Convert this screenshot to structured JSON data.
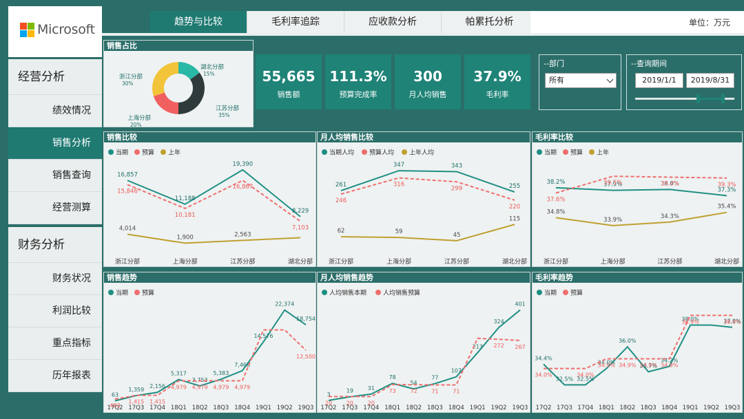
{
  "brand": {
    "name": "Microsoft"
  },
  "header": {
    "unit": "单位：万元"
  },
  "tabs": [
    {
      "label": "趋势与比较",
      "active": true
    },
    {
      "label": "毛利率追踪",
      "active": false
    },
    {
      "label": "应收款分析",
      "active": false
    },
    {
      "label": "帕累托分析",
      "active": false
    }
  ],
  "sidebar": {
    "groups": [
      {
        "title": "经营分析",
        "items": [
          {
            "label": "绩效情况",
            "active": false
          },
          {
            "label": "销售分析",
            "active": true
          },
          {
            "label": "销售查询",
            "active": false
          },
          {
            "label": "经营测算",
            "active": false
          }
        ]
      },
      {
        "title": "财务分析",
        "items": [
          {
            "label": "财务状况",
            "active": false
          },
          {
            "label": "利润比较",
            "active": false
          },
          {
            "label": "重点指标",
            "active": false
          },
          {
            "label": "历年报表",
            "active": false
          }
        ]
      }
    ]
  },
  "kpis": [
    {
      "value": "55,665",
      "label": "销售额"
    },
    {
      "value": "111.3%",
      "label": "预算完成率"
    },
    {
      "value": "300",
      "label": "月人均销售"
    },
    {
      "value": "37.9%",
      "label": "毛利率"
    }
  ],
  "filters": {
    "department": {
      "title": "--部门",
      "value": "所有"
    },
    "period": {
      "title": "--查询期间",
      "start": "2019/1/1",
      "end": "2019/8/31",
      "range": [
        0.63,
        0.88
      ]
    }
  },
  "colors": {
    "actual": "#1f8f84",
    "budget": "#f06e6e",
    "lastyear": "#c0a030"
  },
  "chart_data": [
    {
      "id": "share",
      "type": "pie",
      "title": "销售占比",
      "slices": [
        {
          "name": "湖北分部",
          "pct": "15%",
          "value": 15,
          "color": "#2ab8a6"
        },
        {
          "name": "江苏分部",
          "pct": "35%",
          "value": 35,
          "color": "#2f3b3b"
        },
        {
          "name": "上海分部",
          "pct": "20%",
          "value": 20,
          "color": "#f06060"
        },
        {
          "name": "浙江分部",
          "pct": "30%",
          "value": 30,
          "color": "#f2c43a"
        }
      ]
    },
    {
      "id": "sales_cmp",
      "type": "line",
      "title": "销售比较",
      "categories": [
        "浙江分部",
        "上海分部",
        "江苏分部",
        "湖北分部"
      ],
      "ylim": [
        0,
        21000
      ],
      "series": [
        {
          "name": "当期",
          "labels": [
            "16,857",
            "11,188",
            "19,390",
            "8,229"
          ],
          "values": [
            16857,
            11188,
            19390,
            8229
          ]
        },
        {
          "name": "预算",
          "labels": [
            "15,846",
            "10,181",
            "16,867",
            "7,103"
          ],
          "values": [
            15846,
            10181,
            16867,
            7103
          ]
        },
        {
          "name": "上年",
          "labels": [
            "4,014",
            "1,900",
            "2,563",
            ""
          ],
          "values": [
            4014,
            1900,
            2563,
            3200
          ]
        }
      ]
    },
    {
      "id": "percap_cmp",
      "type": "line",
      "title": "月人均销售比较",
      "categories": [
        "浙江分部",
        "上海分部",
        "江苏分部",
        "湖北分部"
      ],
      "ylim": [
        0,
        380
      ],
      "series": [
        {
          "name": "当期人均",
          "labels": [
            "261",
            "347",
            "343",
            "255"
          ],
          "values": [
            261,
            347,
            343,
            255
          ]
        },
        {
          "name": "预算人均",
          "labels": [
            "246",
            "316",
            "299",
            "220"
          ],
          "values": [
            246,
            316,
            299,
            220
          ]
        },
        {
          "name": "上年人均",
          "labels": [
            "62",
            "59",
            "45",
            "115"
          ],
          "values": [
            62,
            59,
            45,
            115
          ]
        }
      ]
    },
    {
      "id": "gm_cmp",
      "type": "line",
      "title": "毛利率比较",
      "categories": [
        "浙江分部",
        "上海分部",
        "江苏分部",
        "湖北分部"
      ],
      "ylim": [
        31,
        41
      ],
      "series": [
        {
          "name": "当期",
          "labels": [
            "38.2%",
            "37.9%",
            "38.0%",
            "37.3%"
          ],
          "values": [
            38.2,
            37.9,
            38.0,
            37.3
          ]
        },
        {
          "name": "预算",
          "labels": [
            "37.6%",
            "39.5%",
            "39.4%",
            "39.3%"
          ],
          "values": [
            37.6,
            39.5,
            39.4,
            39.3
          ]
        },
        {
          "name": "上年",
          "labels": [
            "34.8%",
            "33.9%",
            "34.3%",
            "35.4%"
          ],
          "values": [
            34.8,
            33.9,
            34.3,
            35.4
          ]
        }
      ]
    },
    {
      "id": "sales_trend",
      "type": "line",
      "title": "销售趋势",
      "categories": [
        "17Q2",
        "17Q3",
        "17Q4",
        "18Q1",
        "18Q2",
        "18Q3",
        "18Q4",
        "19Q1",
        "19Q2",
        "19Q3"
      ],
      "ylim": [
        0,
        24000
      ],
      "series": [
        {
          "name": "当期",
          "labels": [
            "63",
            "1,359",
            "2,156",
            "5,317",
            "3,753",
            "5,383",
            "7,468",
            "14,576",
            "22,374",
            "18,754"
          ],
          "values": [
            63,
            1359,
            2156,
            5317,
            3753,
            5383,
            7468,
            14576,
            22374,
            18754
          ]
        },
        {
          "name": "预算",
          "labels": [
            "483",
            "1,415",
            "1,415",
            "4,979",
            "4,979",
            "4,979",
            "4,979",
            "",
            "",
            "12,500"
          ],
          "values": [
            483,
            1415,
            1415,
            4979,
            4979,
            4979,
            4979,
            17500,
            17500,
            12500
          ]
        }
      ]
    },
    {
      "id": "percap_trend",
      "type": "line",
      "title": "月人均销售趋势",
      "categories": [
        "17Q2",
        "17Q3",
        "17Q4",
        "18Q1",
        "18Q2",
        "18Q3",
        "18Q4",
        "19Q1",
        "19Q2",
        "19Q3"
      ],
      "ylim": [
        0,
        430
      ],
      "series": [
        {
          "name": "人均销售本期",
          "labels": [
            "3",
            "19",
            "31",
            "78",
            "54",
            "77",
            "107",
            "213",
            "324",
            "401"
          ],
          "values": [
            3,
            19,
            31,
            78,
            54,
            77,
            107,
            213,
            324,
            401
          ]
        },
        {
          "name": "人均销售预算",
          "labels": [
            "20",
            "20",
            "20",
            "73",
            "72",
            "71",
            "71",
            "",
            "272",
            "267"
          ],
          "values": [
            20,
            20,
            20,
            73,
            72,
            71,
            71,
            276,
            272,
            267
          ]
        }
      ]
    },
    {
      "id": "gm_trend",
      "type": "line",
      "title": "毛利率趋势",
      "categories": [
        "17Q2",
        "17Q3",
        "17Q4",
        "18Q1",
        "18Q2",
        "18Q3",
        "18Q4",
        "19Q1",
        "19Q2",
        "19Q3"
      ],
      "ylim": [
        31,
        40
      ],
      "series": [
        {
          "name": "当期",
          "labels": [
            "34.4%",
            "32.5%",
            "32.5%",
            "34.0%",
            "36.0%",
            "33.7%",
            "34.2%",
            "38.0%",
            "",
            "37.8%"
          ],
          "values": [
            34.4,
            32.5,
            32.5,
            34.0,
            36.0,
            33.7,
            34.2,
            38.0,
            38.0,
            37.8
          ]
        },
        {
          "name": "预算",
          "labels": [
            "34.0%",
            "",
            "34.0%",
            "34.9%",
            "34.9%",
            "34.9%",
            "34.9%",
            "38.9%",
            "",
            "38.9%"
          ],
          "values": [
            34.0,
            34.0,
            34.0,
            34.9,
            34.9,
            34.9,
            34.9,
            38.9,
            38.9,
            38.9
          ]
        }
      ]
    }
  ]
}
